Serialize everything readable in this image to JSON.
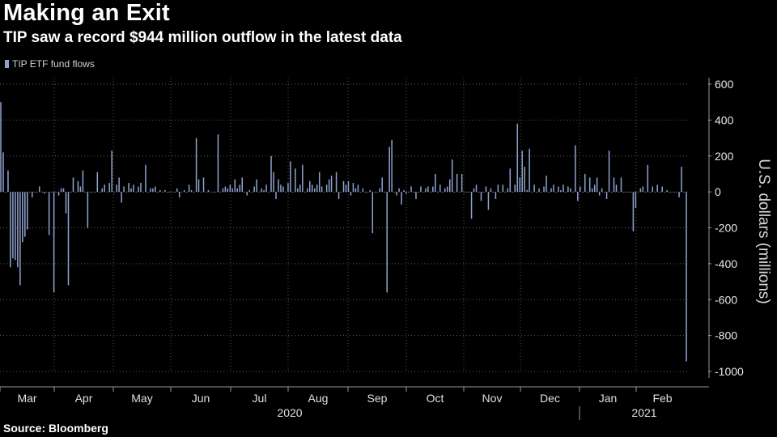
{
  "header": {
    "title": "Making an Exit",
    "subtitle": "TIP saw a record $944 million outflow in the latest data"
  },
  "source": "Source: Bloomberg",
  "colors": {
    "bar": "#8fa3d1",
    "grid": "#5a5a5a",
    "axis": "#9a9a9a"
  },
  "chart_data": {
    "type": "bar",
    "title": "Making an Exit",
    "subtitle": "TIP saw a record $944 million outflow in the latest data",
    "legend": [
      "TIP ETF fund flows"
    ],
    "legend_position": "top-left",
    "ylabel": "U.S. dollars (millions)",
    "ylim": [
      -1000,
      600
    ],
    "yticks": [
      600,
      400,
      200,
      0,
      -200,
      -400,
      -600,
      -800,
      -1000
    ],
    "grid": true,
    "x_month_labels": [
      "Mar",
      "Apr",
      "May",
      "Jun",
      "Jul",
      "Aug",
      "Sep",
      "Oct",
      "Nov",
      "Dec",
      "Jan",
      "Feb"
    ],
    "x_year_labels": [
      "2020",
      "2021"
    ],
    "date_range": [
      "2020-03-02",
      "2021-03-01"
    ],
    "series": [
      {
        "name": "TIP ETF fund flows",
        "values": [
          500,
          220,
          0,
          120,
          -420,
          -370,
          -380,
          -420,
          -520,
          -280,
          -250,
          -210,
          0,
          -30,
          0,
          0,
          30,
          0,
          -10,
          0,
          -240,
          0,
          -560,
          0,
          -20,
          20,
          20,
          -120,
          -520,
          0,
          80,
          0,
          60,
          30,
          120,
          0,
          -200,
          0,
          0,
          0,
          110,
          0,
          20,
          40,
          0,
          50,
          230,
          0,
          40,
          80,
          -60,
          30,
          0,
          50,
          20,
          40,
          0,
          30,
          50,
          0,
          150,
          0,
          20,
          20,
          30,
          0,
          10,
          0,
          10,
          0,
          0,
          0,
          0,
          20,
          -30,
          0,
          10,
          0,
          40,
          10,
          0,
          300,
          70,
          0,
          80,
          0,
          10,
          0,
          0,
          0,
          320,
          0,
          20,
          30,
          20,
          40,
          20,
          70,
          20,
          40,
          80,
          0,
          -20,
          10,
          0,
          30,
          70,
          0,
          20,
          10,
          40,
          0,
          200,
          110,
          -40,
          70,
          40,
          30,
          0,
          50,
          170,
          0,
          130,
          20,
          40,
          150,
          0,
          20,
          60,
          40,
          20,
          40,
          110,
          30,
          0,
          40,
          70,
          90,
          0,
          110,
          -40,
          0,
          60,
          40,
          60,
          -20,
          50,
          20,
          40,
          0,
          20,
          0,
          0,
          10,
          -230,
          0,
          0,
          20,
          80,
          0,
          -560,
          250,
          290,
          0,
          -20,
          20,
          -70,
          10,
          -10,
          0,
          30,
          0,
          -40,
          0,
          30,
          0,
          20,
          30,
          0,
          30,
          100,
          0,
          40,
          0,
          20,
          30,
          70,
          180,
          0,
          100,
          0,
          100,
          0,
          0,
          0,
          -150,
          20,
          40,
          0,
          -50,
          0,
          30,
          -100,
          20,
          0,
          -40,
          40,
          0,
          40,
          0,
          20,
          130,
          0,
          40,
          380,
          80,
          230,
          140,
          10,
          240,
          0,
          40,
          0,
          20,
          0,
          30,
          90,
          0,
          20,
          40,
          0,
          30,
          10,
          40,
          0,
          30,
          20,
          0,
          260,
          -50,
          30,
          0,
          100,
          0,
          80,
          20,
          40,
          80,
          -20,
          20,
          0,
          -40,
          230,
          0,
          80,
          40,
          0,
          80,
          0,
          0,
          0,
          0,
          -220,
          -90,
          0,
          20,
          30,
          0,
          150,
          0,
          30,
          0,
          40,
          0,
          30,
          0,
          10,
          0,
          0,
          0,
          0,
          -30,
          140,
          0,
          -944
        ]
      }
    ]
  }
}
